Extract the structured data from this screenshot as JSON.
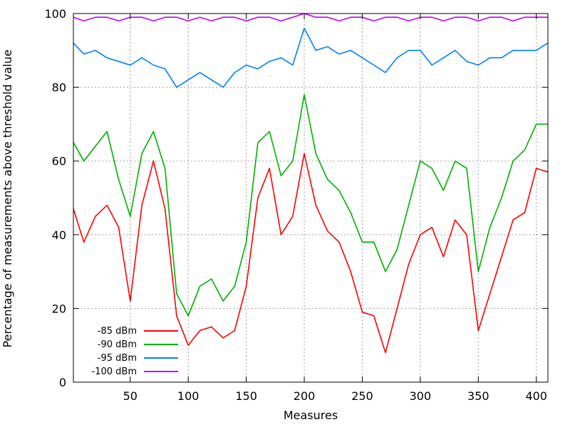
{
  "chart_data": {
    "type": "line",
    "title": "",
    "xlabel": "Measures",
    "ylabel": "Percentage of measurements above threshold value",
    "xlim": [
      1,
      410
    ],
    "ylim": [
      0,
      100
    ],
    "xticks": [
      50,
      100,
      150,
      200,
      250,
      300,
      350,
      400
    ],
    "yticks": [
      0,
      20,
      40,
      60,
      80,
      100
    ],
    "grid": true,
    "legend_position": "bottom-left",
    "series": [
      {
        "name": "-85 dBm",
        "color": "#ff0000",
        "x": [
          1,
          10,
          20,
          30,
          40,
          50,
          60,
          70,
          80,
          90,
          100,
          110,
          120,
          130,
          140,
          150,
          160,
          170,
          180,
          190,
          200,
          210,
          220,
          230,
          240,
          250,
          260,
          270,
          280,
          290,
          300,
          310,
          320,
          330,
          340,
          350,
          360,
          370,
          380,
          390,
          400,
          410
        ],
        "values": [
          47,
          38,
          45,
          48,
          42,
          22,
          48,
          60,
          47,
          18,
          10,
          14,
          15,
          12,
          14,
          26,
          50,
          58,
          40,
          45,
          62,
          48,
          41,
          38,
          30,
          19,
          18,
          8,
          20,
          32,
          40,
          42,
          34,
          44,
          40,
          14,
          24,
          34,
          44,
          46,
          58,
          57
        ]
      },
      {
        "name": "-90 dBm",
        "color": "#00b000",
        "x": [
          1,
          10,
          20,
          30,
          40,
          50,
          60,
          70,
          80,
          90,
          100,
          110,
          120,
          130,
          140,
          150,
          160,
          170,
          180,
          190,
          200,
          210,
          220,
          230,
          240,
          250,
          260,
          270,
          280,
          290,
          300,
          310,
          320,
          330,
          340,
          350,
          360,
          370,
          380,
          390,
          400,
          410
        ],
        "values": [
          65,
          60,
          64,
          68,
          55,
          45,
          62,
          68,
          58,
          24,
          18,
          26,
          28,
          22,
          26,
          38,
          65,
          68,
          56,
          60,
          78,
          62,
          55,
          52,
          46,
          38,
          38,
          30,
          36,
          48,
          60,
          58,
          52,
          60,
          58,
          30,
          42,
          50,
          60,
          63,
          70,
          70
        ]
      },
      {
        "name": "-95 dBm",
        "color": "#0080ff",
        "x": [
          1,
          10,
          20,
          30,
          40,
          50,
          60,
          70,
          80,
          90,
          100,
          110,
          120,
          130,
          140,
          150,
          160,
          170,
          180,
          190,
          200,
          210,
          220,
          230,
          240,
          250,
          260,
          270,
          280,
          290,
          300,
          310,
          320,
          330,
          340,
          350,
          360,
          370,
          380,
          390,
          400,
          410
        ],
        "values": [
          92,
          89,
          90,
          88,
          87,
          86,
          88,
          86,
          85,
          80,
          82,
          84,
          82,
          80,
          84,
          86,
          85,
          87,
          88,
          86,
          96,
          90,
          91,
          89,
          90,
          88,
          86,
          84,
          88,
          90,
          90,
          86,
          88,
          90,
          87,
          86,
          88,
          88,
          90,
          90,
          90,
          92
        ]
      },
      {
        "name": "-100 dBm",
        "color": "#c000ff",
        "x": [
          1,
          10,
          20,
          30,
          40,
          50,
          60,
          70,
          80,
          90,
          100,
          110,
          120,
          130,
          140,
          150,
          160,
          170,
          180,
          190,
          200,
          210,
          220,
          230,
          240,
          250,
          260,
          270,
          280,
          290,
          300,
          310,
          320,
          330,
          340,
          350,
          360,
          370,
          380,
          390,
          400,
          410
        ],
        "values": [
          99,
          98,
          99,
          99,
          98,
          99,
          99,
          98,
          99,
          99,
          98,
          99,
          98,
          99,
          99,
          98,
          99,
          99,
          98,
          99,
          100,
          99,
          99,
          98,
          99,
          99,
          98,
          99,
          99,
          98,
          99,
          99,
          98,
          99,
          99,
          98,
          99,
          99,
          98,
          99,
          99,
          99
        ]
      }
    ]
  }
}
